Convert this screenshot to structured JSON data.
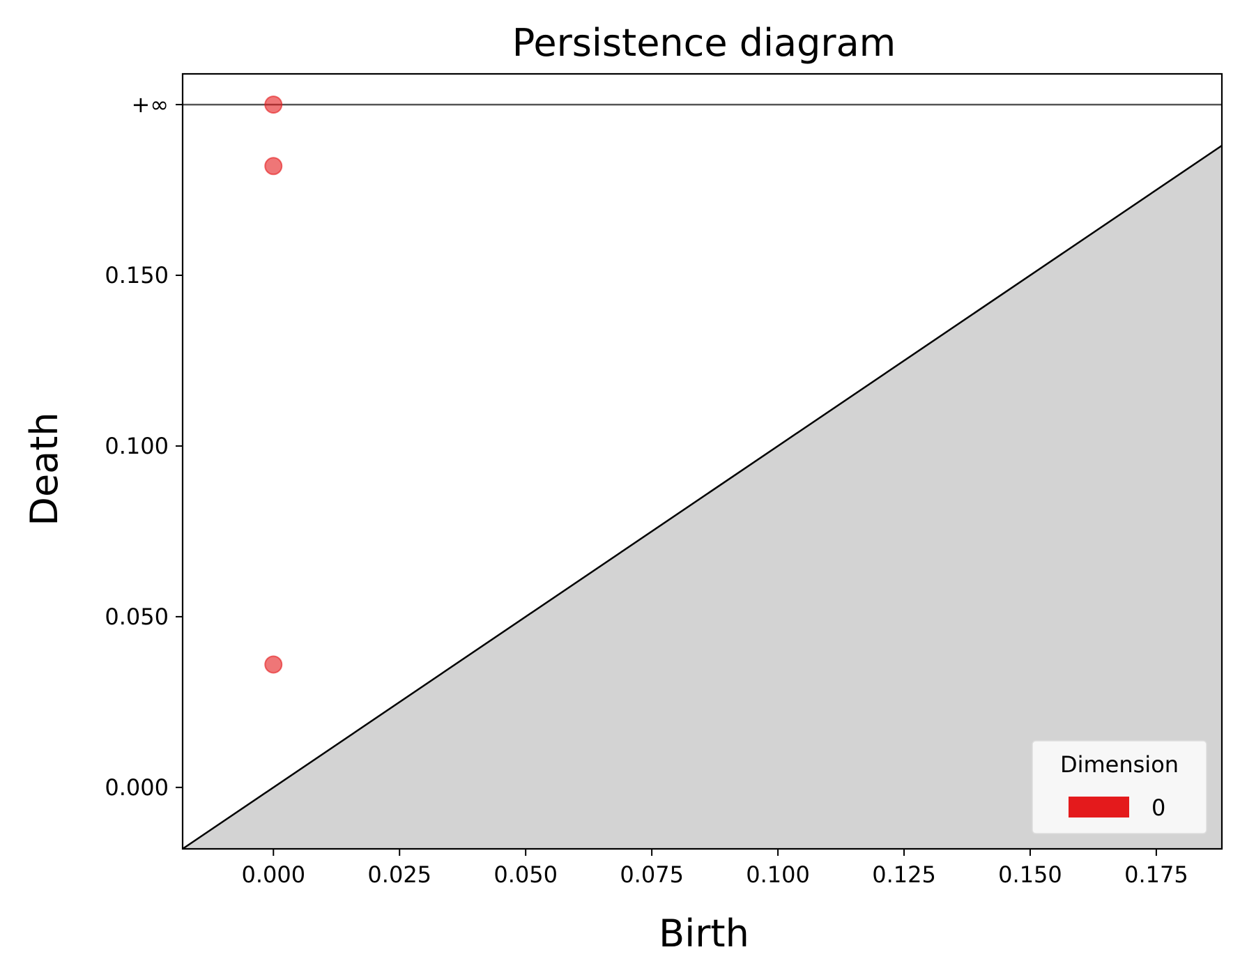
{
  "chart_data": {
    "type": "scatter",
    "title": "Persistence diagram",
    "xlabel": "Birth",
    "ylabel": "Death",
    "xlim": [
      -0.018,
      0.188
    ],
    "ylim": [
      -0.018,
      0.209
    ],
    "x_ticks": [
      0.0,
      0.025,
      0.05,
      0.075,
      0.1,
      0.125,
      0.15,
      0.175
    ],
    "x_tick_labels": [
      "0.000",
      "0.025",
      "0.050",
      "0.075",
      "0.100",
      "0.125",
      "0.150",
      "0.175"
    ],
    "y_ticks": [
      0.0,
      0.05,
      0.1,
      0.15
    ],
    "y_tick_labels": [
      "0.000",
      "0.050",
      "0.100",
      "0.150"
    ],
    "infinity_line": {
      "label": "+∞",
      "y": 0.2
    },
    "diagonal": true,
    "shade_below_diagonal": "#d3d3d3",
    "grid": false,
    "legend": {
      "title": "Dimension",
      "position": "bottom-right",
      "entries": [
        {
          "label": "0",
          "color": "#e41a1c"
        }
      ]
    },
    "series": [
      {
        "name": "0",
        "color": "#e41a1c",
        "points": [
          {
            "birth": 0.0,
            "death": "+∞"
          },
          {
            "birth": 0.0,
            "death": 0.182
          },
          {
            "birth": 0.0,
            "death": 0.036
          }
        ]
      }
    ]
  }
}
